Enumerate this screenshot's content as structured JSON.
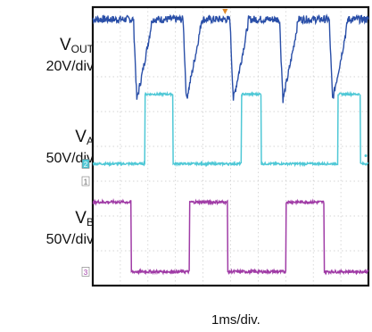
{
  "chart_data": {
    "type": "line",
    "grid": true,
    "divisions": {
      "x": 10,
      "y": 8
    },
    "x_scale": "1ms/div.",
    "time_range_ms": [
      0,
      10
    ],
    "series": [
      {
        "name": "VOUT",
        "scale": "20V/div",
        "color": "#2a4fa8",
        "marker": "",
        "waveform": "high level with periodic sharp dips",
        "level_div": 7.65,
        "dip_times_ms": [
          1.6,
          3.4,
          5.1,
          6.9,
          8.7
        ],
        "dip_depth_div": 2.3
      },
      {
        "name": "VA",
        "scale": "50V/div",
        "color": "#4fc8d6",
        "marker": "2",
        "waveform": "pulse train",
        "low_div": 3.5,
        "high_div": 5.5,
        "pulses_ms": [
          [
            1.9,
            2.9
          ],
          [
            5.4,
            6.1
          ],
          [
            8.9,
            9.7
          ]
        ]
      },
      {
        "name": "VB",
        "scale": "50V/div",
        "color": "#a03ca6",
        "marker": "3",
        "waveform": "high with low intervals",
        "high_div": 2.4,
        "low_div": 0.4,
        "low_intervals_ms": [
          [
            1.4,
            3.5
          ],
          [
            4.9,
            7.0
          ],
          [
            8.4,
            10.0
          ]
        ]
      }
    ],
    "extra_markers": [
      "1"
    ],
    "trigger_marker_color": "#e08a2a"
  },
  "labels": {
    "vout": {
      "main": "V",
      "sub": "OUT",
      "scale": "20V/div"
    },
    "va": {
      "main": "V",
      "sub": "A",
      "scale": "50V/div"
    },
    "vb": {
      "main": "V",
      "sub": "B",
      "scale": "50V/div"
    },
    "xscale": "1ms/div."
  }
}
